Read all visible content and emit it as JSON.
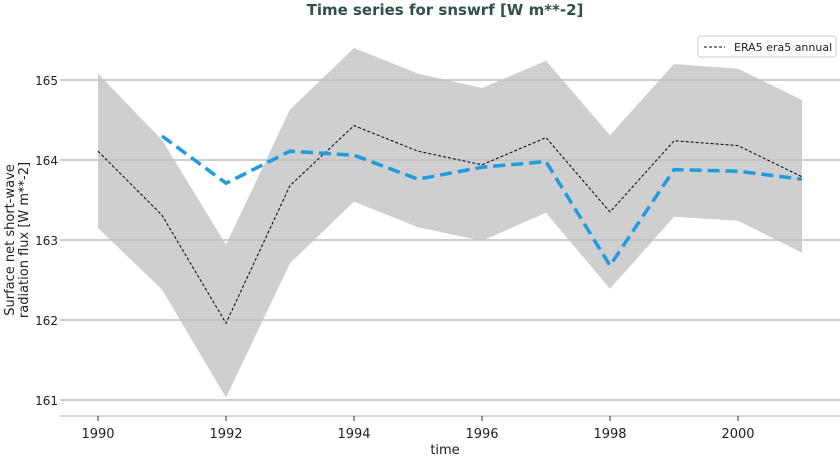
{
  "chart_data": {
    "type": "line",
    "title": "Time series for snswrf [W m**-2]",
    "xlabel": "time",
    "ylabel": "Surface net short-wave radiation flux [W m**-2]",
    "ylabel_lines": [
      "Surface net short-wave",
      "radiation flux [W m**-2]"
    ],
    "xlim": [
      1989.4,
      2002.2
    ],
    "ylim": [
      160.8,
      165.6
    ],
    "xticks": [
      1990,
      1992,
      1994,
      1996,
      1998,
      2000
    ],
    "yticks": [
      161,
      162,
      163,
      164,
      165
    ],
    "grid": "horizontal",
    "legend_position": "top-right",
    "x": [
      1990,
      1991,
      1992,
      1993,
      1994,
      1995,
      1996,
      1997,
      1998,
      1999,
      2000,
      2001
    ],
    "band": {
      "upper": [
        165.08,
        164.25,
        162.94,
        164.63,
        165.4,
        165.08,
        164.9,
        165.24,
        164.31,
        165.2,
        165.14,
        164.75
      ],
      "lower": [
        163.15,
        162.38,
        161.03,
        162.71,
        163.48,
        163.16,
        162.99,
        163.34,
        162.39,
        163.29,
        163.24,
        162.84
      ],
      "color": "#cccccc"
    },
    "series": [
      {
        "name": "ERA5 era5 annual",
        "color": "#000000",
        "values": [
          164.11,
          163.31,
          161.96,
          163.68,
          164.43,
          164.11,
          163.94,
          164.28,
          163.35,
          164.24,
          164.18,
          163.79
        ]
      },
      {
        "color": "#1f9be0",
        "values": [
          null,
          164.3,
          163.71,
          164.11,
          164.06,
          163.76,
          163.91,
          163.98,
          162.68,
          163.88,
          163.86,
          163.76
        ]
      }
    ]
  }
}
